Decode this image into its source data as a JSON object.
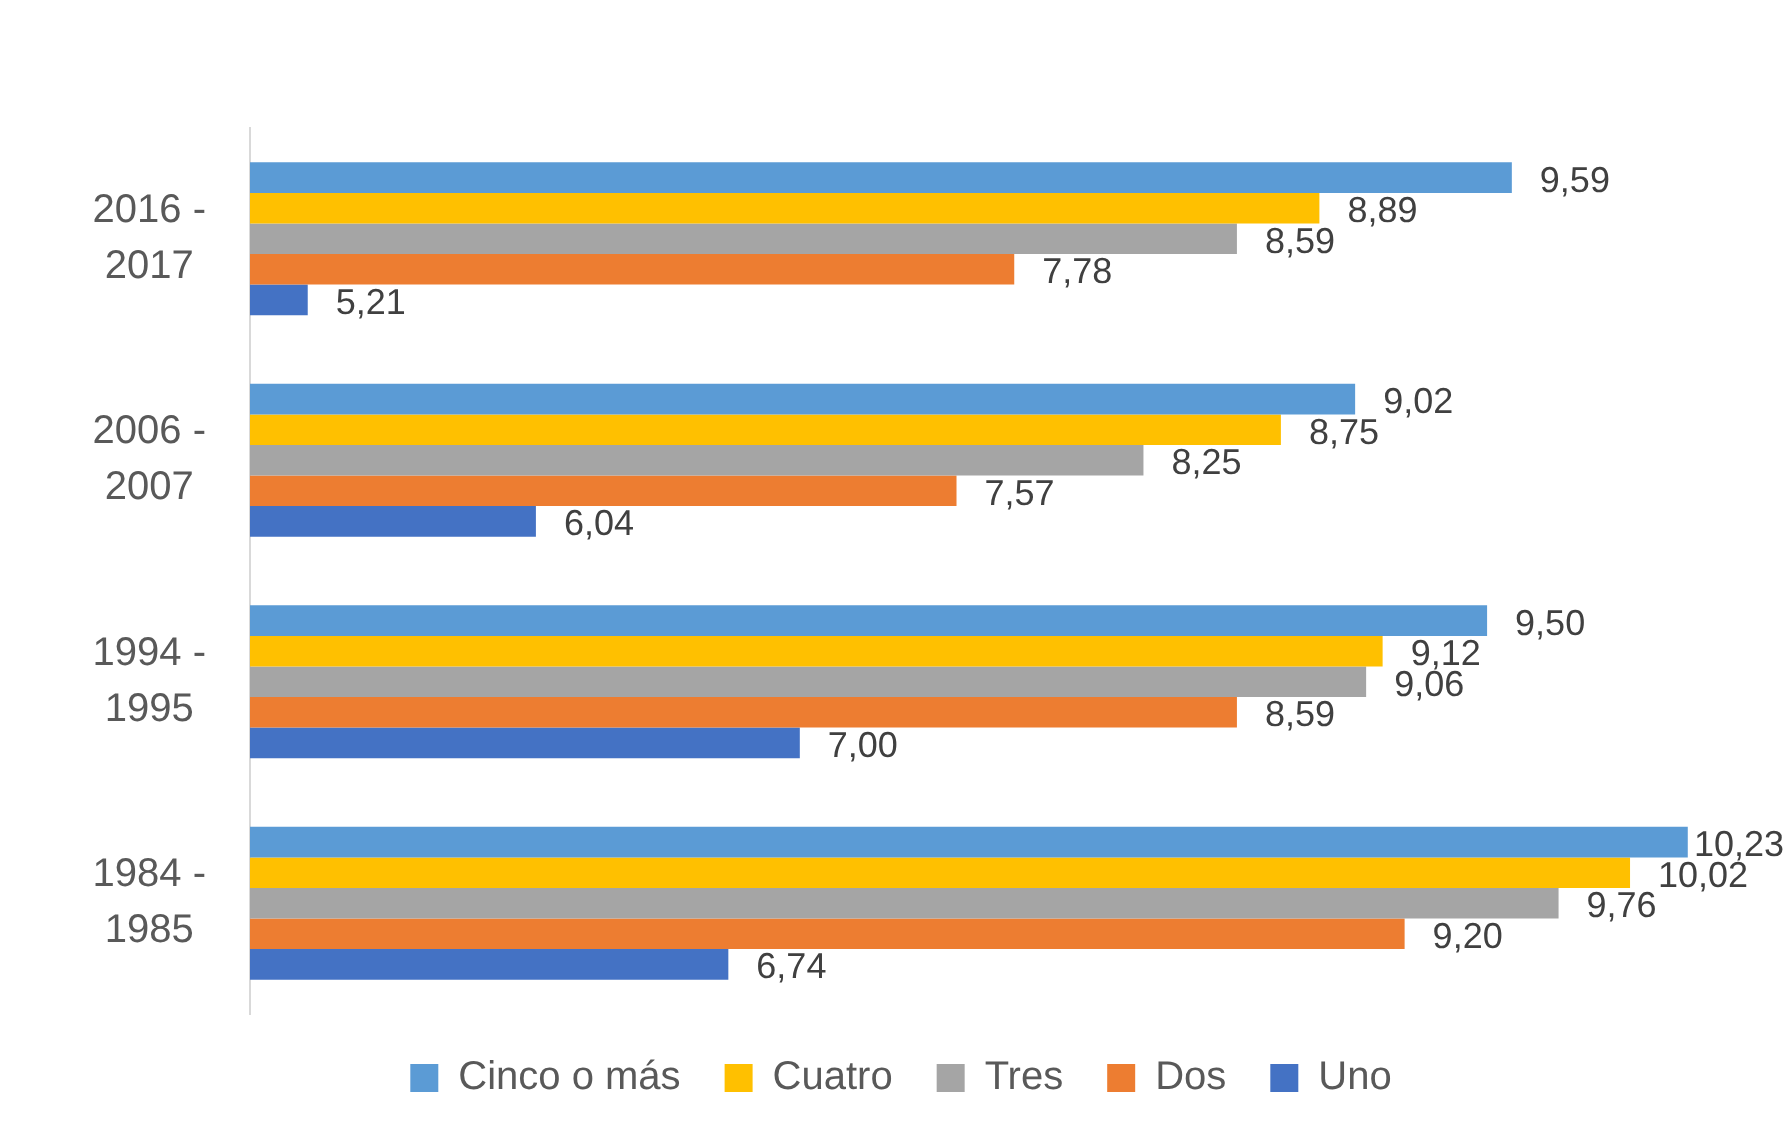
{
  "chart_data": {
    "type": "bar",
    "orientation": "horizontal",
    "categories": [
      "2016 - 2017",
      "2006 - 2007",
      "1994 - 1995",
      "1984 - 1985"
    ],
    "series": [
      {
        "name": "Cinco o más",
        "color": "#5b9bd5",
        "values": [
          9.59,
          9.02,
          9.5,
          10.23
        ],
        "value_labels": [
          "9,59",
          "9,02",
          "9,50",
          "10,23"
        ]
      },
      {
        "name": "Cuatro",
        "color": "#ffc000",
        "values": [
          8.89,
          8.75,
          9.12,
          10.02
        ],
        "value_labels": [
          "8,89",
          "8,75",
          "9,12",
          "10,02"
        ]
      },
      {
        "name": "Tres",
        "color": "#a5a5a5",
        "values": [
          8.59,
          8.25,
          9.06,
          9.76
        ],
        "value_labels": [
          "8,59",
          "8,25",
          "9,06",
          "9,76"
        ]
      },
      {
        "name": "Dos",
        "color": "#ed7d31",
        "values": [
          7.78,
          7.57,
          8.59,
          9.2
        ],
        "value_labels": [
          "7,78",
          "7,57",
          "8,59",
          "9,20"
        ]
      },
      {
        "name": "Uno",
        "color": "#4472c4",
        "values": [
          5.21,
          6.04,
          7.0,
          6.74
        ],
        "value_labels": [
          "5,21",
          "6,04",
          "7,00",
          "6,74"
        ]
      }
    ],
    "grid": false,
    "legend": "bottom",
    "tick_labels": "y"
  }
}
